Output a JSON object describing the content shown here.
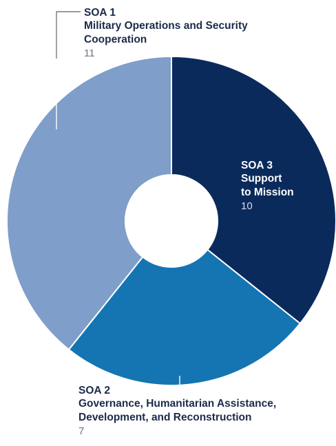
{
  "chart_data": {
    "type": "pie",
    "donut": true,
    "slices": [
      {
        "code": "SOA 1",
        "name": "Military Operations and Security Cooperation",
        "value": 11,
        "color": "#7f9ec9"
      },
      {
        "code": "SOA 3",
        "name": "Support to Mission",
        "value": 10,
        "color": "#0b2a5c"
      },
      {
        "code": "SOA 2",
        "name": "Governance, Humanitarian Assistance, Development, and Reconstruction",
        "value": 7,
        "color": "#1575b3"
      }
    ]
  }
}
